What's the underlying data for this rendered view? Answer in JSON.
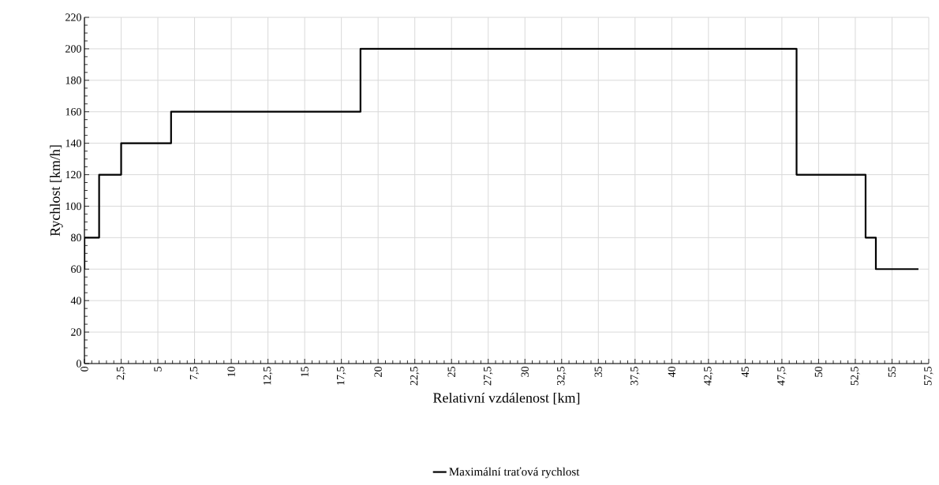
{
  "chart_data": {
    "type": "step",
    "xlabel": "Relativní vzdálenost [km]",
    "ylabel": "Rychlost [km/h]",
    "x": [
      0,
      0,
      1.0,
      2.5,
      5.9,
      18.8,
      48.5,
      53.2,
      53.9,
      56.8
    ],
    "series": [
      {
        "name": "Maximální traťová rychlost",
        "color": "#000000",
        "values": [
          60,
          80,
          120,
          140,
          160,
          200,
          120,
          80,
          60,
          60
        ]
      }
    ],
    "xlim": [
      0,
      57.5
    ],
    "xticks": [
      0,
      {
        "value": 2.5,
        "label": "2,5"
      },
      5,
      {
        "value": 7.5,
        "label": "7,5"
      },
      10,
      {
        "value": 12.5,
        "label": "12,5"
      },
      15,
      {
        "value": 17.5,
        "label": "17,5"
      },
      20,
      {
        "value": 22.5,
        "label": "22,5"
      },
      25,
      {
        "value": 27.5,
        "label": "27,5"
      },
      30,
      {
        "value": 32.5,
        "label": "32,5"
      },
      35,
      {
        "value": 37.5,
        "label": "37,5"
      },
      40,
      {
        "value": 42.5,
        "label": "42,5"
      },
      45,
      {
        "value": 47.5,
        "label": "47,5"
      },
      50,
      {
        "value": 52.5,
        "label": "52,5"
      },
      55,
      {
        "value": 57.5,
        "label": "57,5"
      }
    ],
    "ylim": [
      0,
      220
    ],
    "yticks": [
      0,
      20,
      40,
      60,
      80,
      100,
      120,
      140,
      160,
      180,
      200,
      220
    ],
    "grid": true,
    "legend": "bottom",
    "line_style": "solid",
    "marker": "none"
  }
}
